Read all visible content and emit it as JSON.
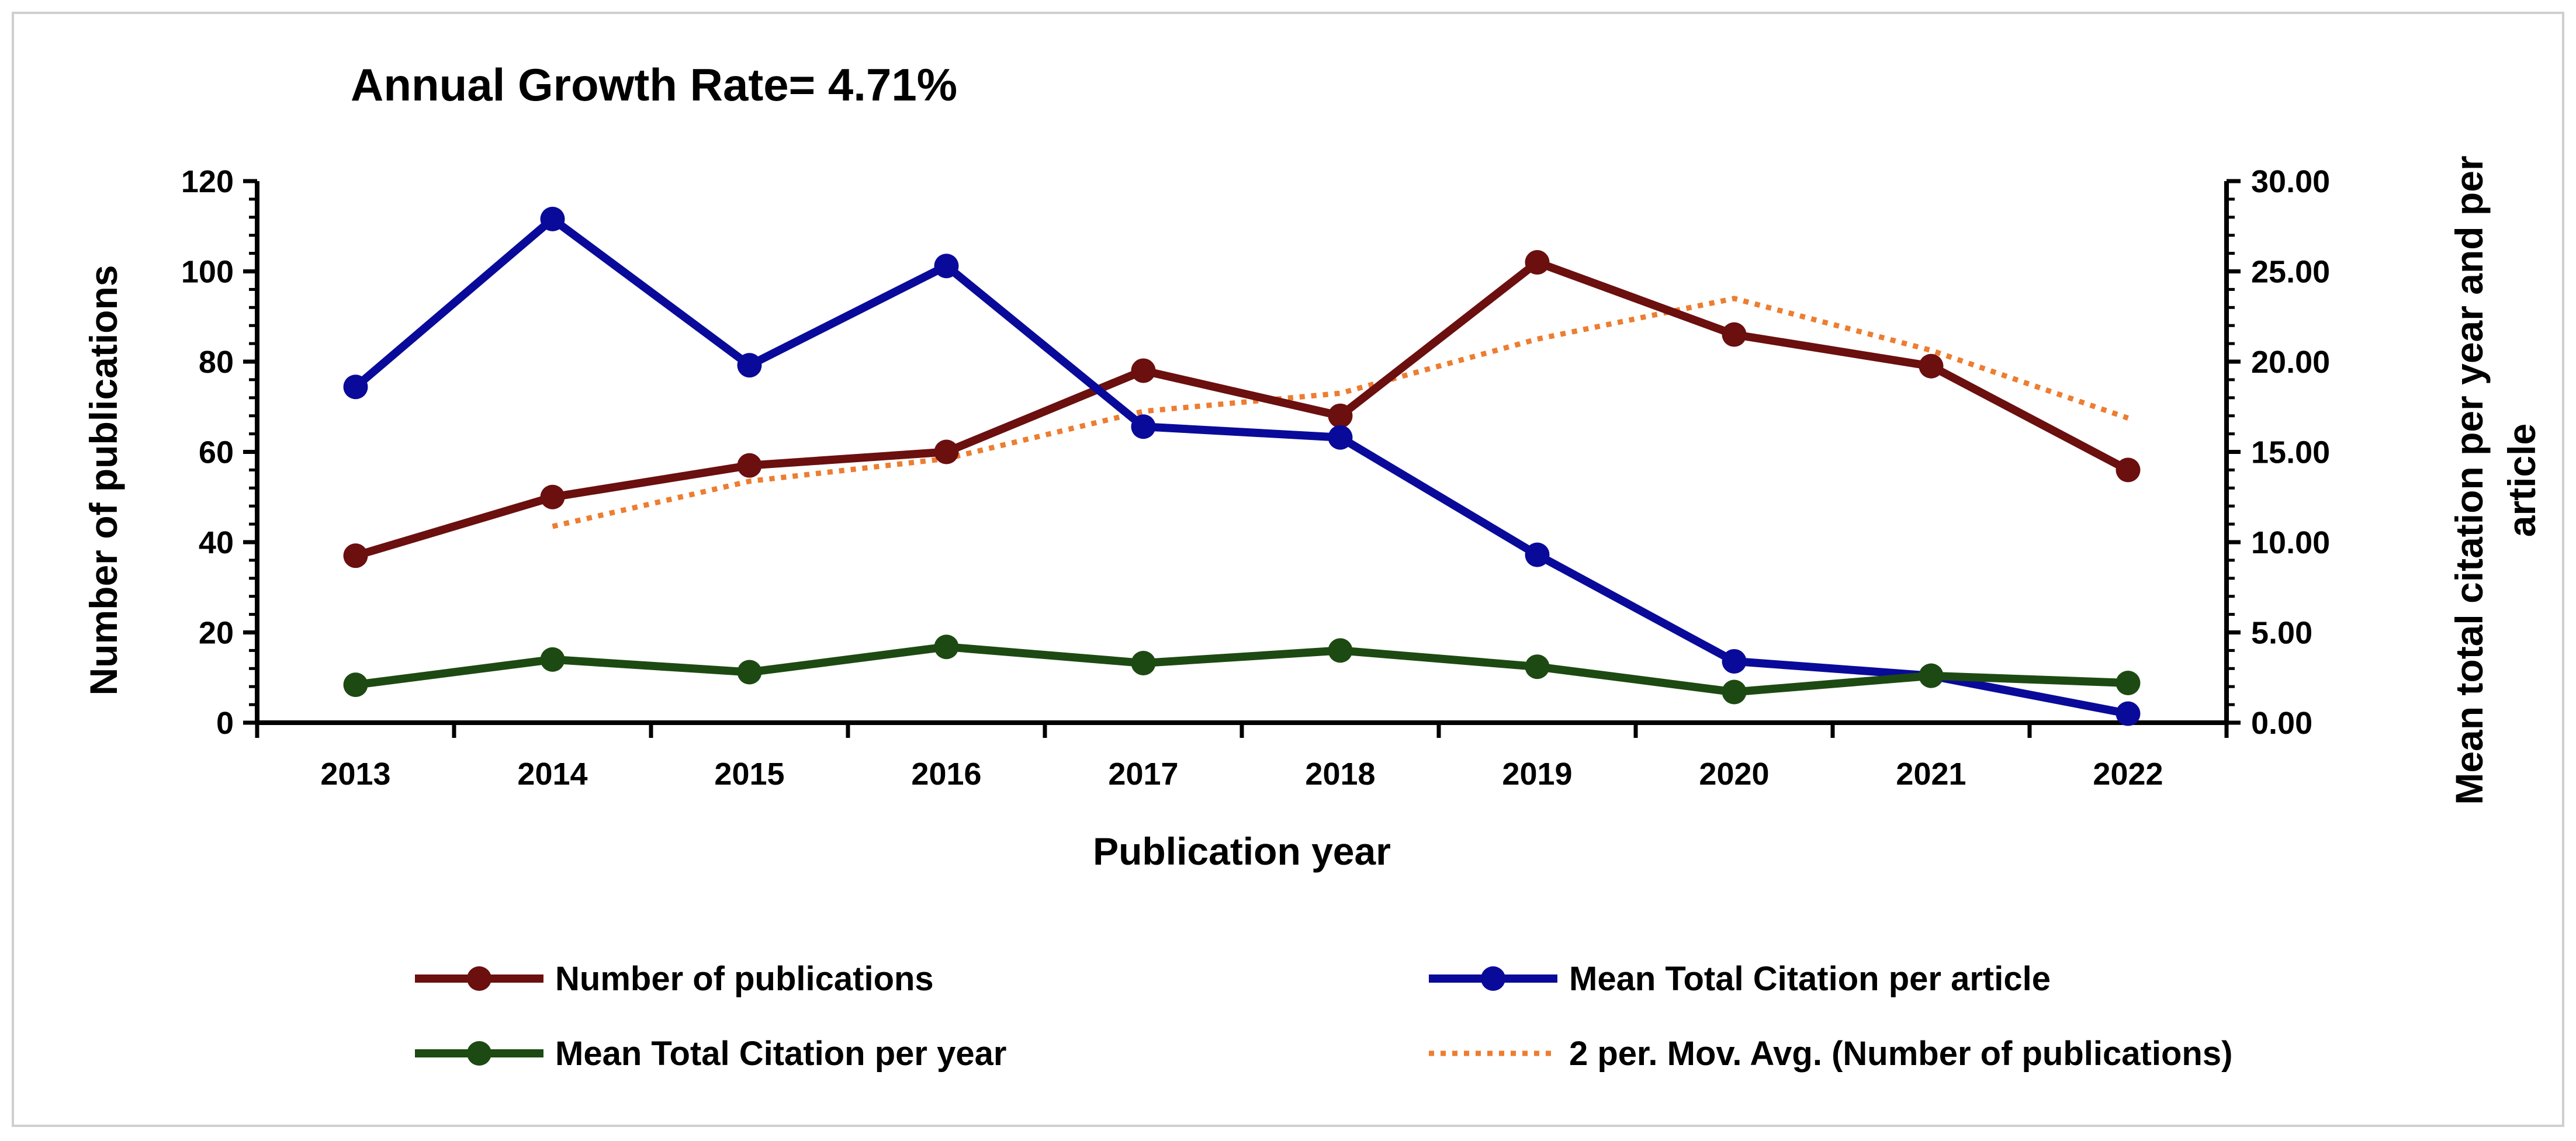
{
  "chart_data": {
    "type": "line",
    "title": "Annual Growth Rate= 4.71%",
    "xlabel": "Publication year",
    "ylabel": "Number of publications",
    "y2label_line1": "Mean total citation per year and per",
    "y2label_line2": "article",
    "categories": [
      "2013",
      "2014",
      "2015",
      "2016",
      "2017",
      "2018",
      "2019",
      "2020",
      "2021",
      "2022"
    ],
    "ylim": [
      0,
      120
    ],
    "y_ticks": [
      "0",
      "20",
      "40",
      "60",
      "80",
      "100",
      "120"
    ],
    "y2lim": [
      0,
      30
    ],
    "y2_ticks": [
      "0.00",
      "5.00",
      "10.00",
      "15.00",
      "20.00",
      "25.00",
      "30.00"
    ],
    "grid": false,
    "legend_position": "bottom",
    "series": [
      {
        "name": "Number of publications",
        "axis": "left",
        "style": "solid-marker",
        "color": "#6b0f0f",
        "values": [
          37,
          50,
          57,
          60,
          78,
          68,
          102,
          86,
          79,
          56
        ]
      },
      {
        "name": "Mean Total Citation per article",
        "axis": "right",
        "style": "solid-marker",
        "color": "#0a0a9a",
        "values": [
          18.6,
          27.9,
          19.8,
          25.3,
          16.4,
          15.8,
          9.3,
          3.4,
          2.6,
          0.5
        ]
      },
      {
        "name": "Mean Total Citation per year",
        "axis": "right",
        "style": "solid-marker",
        "color": "#1d4a12",
        "values": [
          2.1,
          3.5,
          2.8,
          4.2,
          3.3,
          4.0,
          3.1,
          1.7,
          2.6,
          2.2
        ]
      },
      {
        "name": "2 per. Mov. Avg. (Number of publications)",
        "axis": "left",
        "style": "dotted",
        "color": "#ed7d31",
        "values": [
          null,
          43.5,
          53.5,
          58.5,
          69,
          73,
          85,
          94,
          82.5,
          67.5
        ]
      }
    ]
  }
}
